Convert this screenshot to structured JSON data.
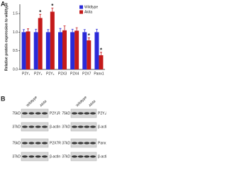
{
  "chart_data": {
    "type": "bar",
    "panel_label": "A",
    "y_label": "Relative protein expression to wildtype",
    "categories": [
      "P2Y₁",
      "P2Y₂",
      "P2Y₄",
      "P2X3",
      "P2X4",
      "P2X7",
      "Panx1"
    ],
    "series": [
      {
        "name": "Wildtype",
        "color": "#2a2ad8",
        "values": [
          1.0,
          1.0,
          1.0,
          1.0,
          1.0,
          1.0,
          1.0
        ],
        "errors": [
          0.07,
          0.08,
          0.07,
          0.1,
          0.08,
          0.07,
          0.08
        ],
        "markers": [
          null,
          null,
          null,
          null,
          null,
          null,
          null
        ]
      },
      {
        "name": "Akita",
        "color": "#c41a1a",
        "values": [
          1.02,
          1.38,
          1.55,
          1.05,
          1.04,
          0.78,
          0.38
        ],
        "errors": [
          0.07,
          0.1,
          0.1,
          0.12,
          0.08,
          0.07,
          0.08
        ],
        "markers": [
          null,
          "*",
          "*",
          null,
          null,
          "*",
          "*"
        ]
      }
    ],
    "ylim": [
      0,
      1.75
    ],
    "yticks": [
      {
        "value": 0,
        "label": "0.0"
      },
      0.5,
      {
        "value": 1,
        "label": "1.0"
      },
      1.5
    ],
    "legend": "top-right"
  },
  "blot_panel": {
    "label": "B",
    "lanes": [
      "Wildtype",
      "Akita"
    ],
    "left": [
      {
        "marker": "75kD",
        "protein": "P2Y₁R"
      },
      {
        "marker": "37kD",
        "protein": "β-actin"
      },
      {
        "marker": "75kD",
        "protein": "P2X7R"
      },
      {
        "marker": "37kD",
        "protein": "β-actin"
      }
    ],
    "right": [
      {
        "marker": "75kD",
        "protein": "P2Y₂R"
      },
      {
        "marker": "37kD",
        "protein": "β-actin"
      },
      {
        "marker": "37kD",
        "protein": "Panx1"
      },
      {
        "marker": "37kD",
        "protein": "β-actin"
      }
    ]
  }
}
